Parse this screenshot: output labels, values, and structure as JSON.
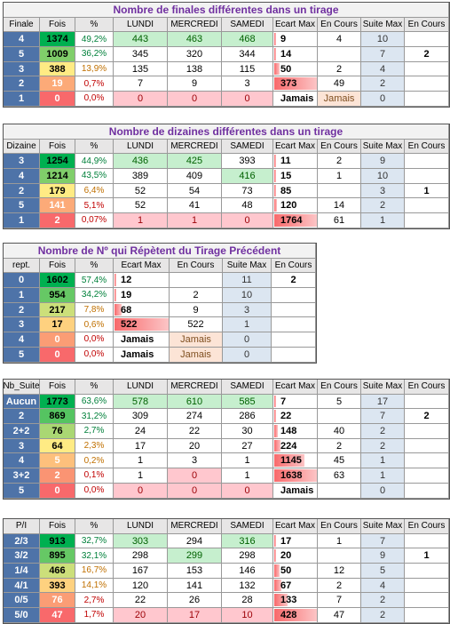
{
  "tables": [
    {
      "title": "Nombre de finales différentes dans un tirage",
      "header": [
        "Finale",
        "Fois",
        "%",
        "LUNDI",
        "MERCREDI",
        "SAMEDI",
        "Ecart Max",
        "En Cours",
        "Suite Max",
        "En Cours"
      ],
      "rows": [
        [
          4,
          1374,
          "49,2%",
          443,
          463,
          468,
          9,
          4,
          10,
          null
        ],
        [
          5,
          1009,
          "36,2%",
          345,
          320,
          344,
          14,
          null,
          7,
          2
        ],
        [
          3,
          388,
          "13,9%",
          135,
          138,
          115,
          50,
          2,
          4,
          null
        ],
        [
          2,
          19,
          "0,7%",
          7,
          9,
          3,
          373,
          49,
          2,
          null
        ],
        [
          1,
          0,
          "0,0%",
          0,
          0,
          0,
          "Jamais",
          "Jamais",
          0,
          null
        ]
      ]
    },
    {
      "title": "Nombre de dizaines différentes dans un tirage",
      "header": [
        "Dizaine",
        "Fois",
        "%",
        "LUNDI",
        "MERCREDI",
        "SAMEDI",
        "Ecart Max",
        "En Cours",
        "Suite Max",
        "En Cours"
      ],
      "rows": [
        [
          3,
          1254,
          "44,9%",
          436,
          425,
          393,
          11,
          2,
          9,
          null
        ],
        [
          4,
          1214,
          "43,5%",
          389,
          409,
          416,
          15,
          1,
          10,
          null
        ],
        [
          2,
          179,
          "6,4%",
          52,
          54,
          73,
          85,
          null,
          3,
          1
        ],
        [
          5,
          141,
          "5,1%",
          52,
          41,
          48,
          120,
          14,
          2,
          null
        ],
        [
          1,
          2,
          "0,07%",
          1,
          1,
          0,
          1764,
          61,
          1,
          null
        ]
      ]
    },
    {
      "title": "Nombre de Nº qui Répètent du Tirage Précédent",
      "header": [
        "rept.",
        "Fois",
        "%",
        "Ecart Max",
        "En Cours",
        "Suite Max",
        "En Cours"
      ],
      "rows": [
        [
          0,
          1602,
          "57,4%",
          12,
          null,
          11,
          2
        ],
        [
          1,
          954,
          "34,2%",
          19,
          2,
          10,
          null
        ],
        [
          2,
          217,
          "7,8%",
          68,
          9,
          3,
          null
        ],
        [
          3,
          17,
          "0,6%",
          522,
          522,
          1,
          null
        ],
        [
          4,
          0,
          "0,0%",
          "Jamais",
          "Jamais",
          0,
          null
        ],
        [
          5,
          0,
          "0,0%",
          "Jamais",
          "Jamais",
          0,
          null
        ]
      ]
    },
    {
      "header": [
        "Nb_Suite",
        "Fois",
        "%",
        "LUNDI",
        "MERCREDI",
        "SAMEDI",
        "Ecart Max",
        "En Cours",
        "Suite Max",
        "En Cours"
      ],
      "rows": [
        [
          "Aucun",
          1773,
          "63,6%",
          578,
          610,
          585,
          7,
          5,
          17,
          null
        ],
        [
          2,
          869,
          "31,2%",
          309,
          274,
          286,
          22,
          null,
          7,
          2
        ],
        [
          "2+2",
          76,
          "2,7%",
          24,
          22,
          30,
          148,
          40,
          2,
          null
        ],
        [
          3,
          64,
          "2,3%",
          17,
          20,
          27,
          224,
          2,
          2,
          null
        ],
        [
          4,
          5,
          "0,2%",
          1,
          3,
          1,
          1145,
          45,
          1,
          null
        ],
        [
          "3+2",
          2,
          "0,1%",
          1,
          0,
          1,
          1638,
          63,
          1,
          null
        ],
        [
          5,
          0,
          "0,0%",
          0,
          0,
          0,
          "Jamais",
          null,
          0,
          null
        ]
      ]
    },
    {
      "header": [
        "P/I",
        "Fois",
        "%",
        "LUNDI",
        "MERCREDI",
        "SAMEDI",
        "Ecart Max",
        "En Cours",
        "Suite Max",
        "En Cours"
      ],
      "rows": [
        [
          "2/3",
          913,
          "32,7%",
          303,
          294,
          316,
          17,
          1,
          7,
          null
        ],
        [
          "3/2",
          895,
          "32,1%",
          298,
          299,
          298,
          20,
          null,
          9,
          1
        ],
        [
          "1/4",
          466,
          "16,7%",
          167,
          153,
          146,
          50,
          12,
          5,
          null
        ],
        [
          "4/1",
          393,
          "14,1%",
          120,
          141,
          132,
          67,
          2,
          4,
          null
        ],
        [
          "0/5",
          76,
          "2,7%",
          22,
          26,
          28,
          133,
          7,
          2,
          null
        ],
        [
          "5/0",
          47,
          "1,7%",
          20,
          17,
          10,
          428,
          47,
          2,
          null
        ]
      ]
    }
  ]
}
